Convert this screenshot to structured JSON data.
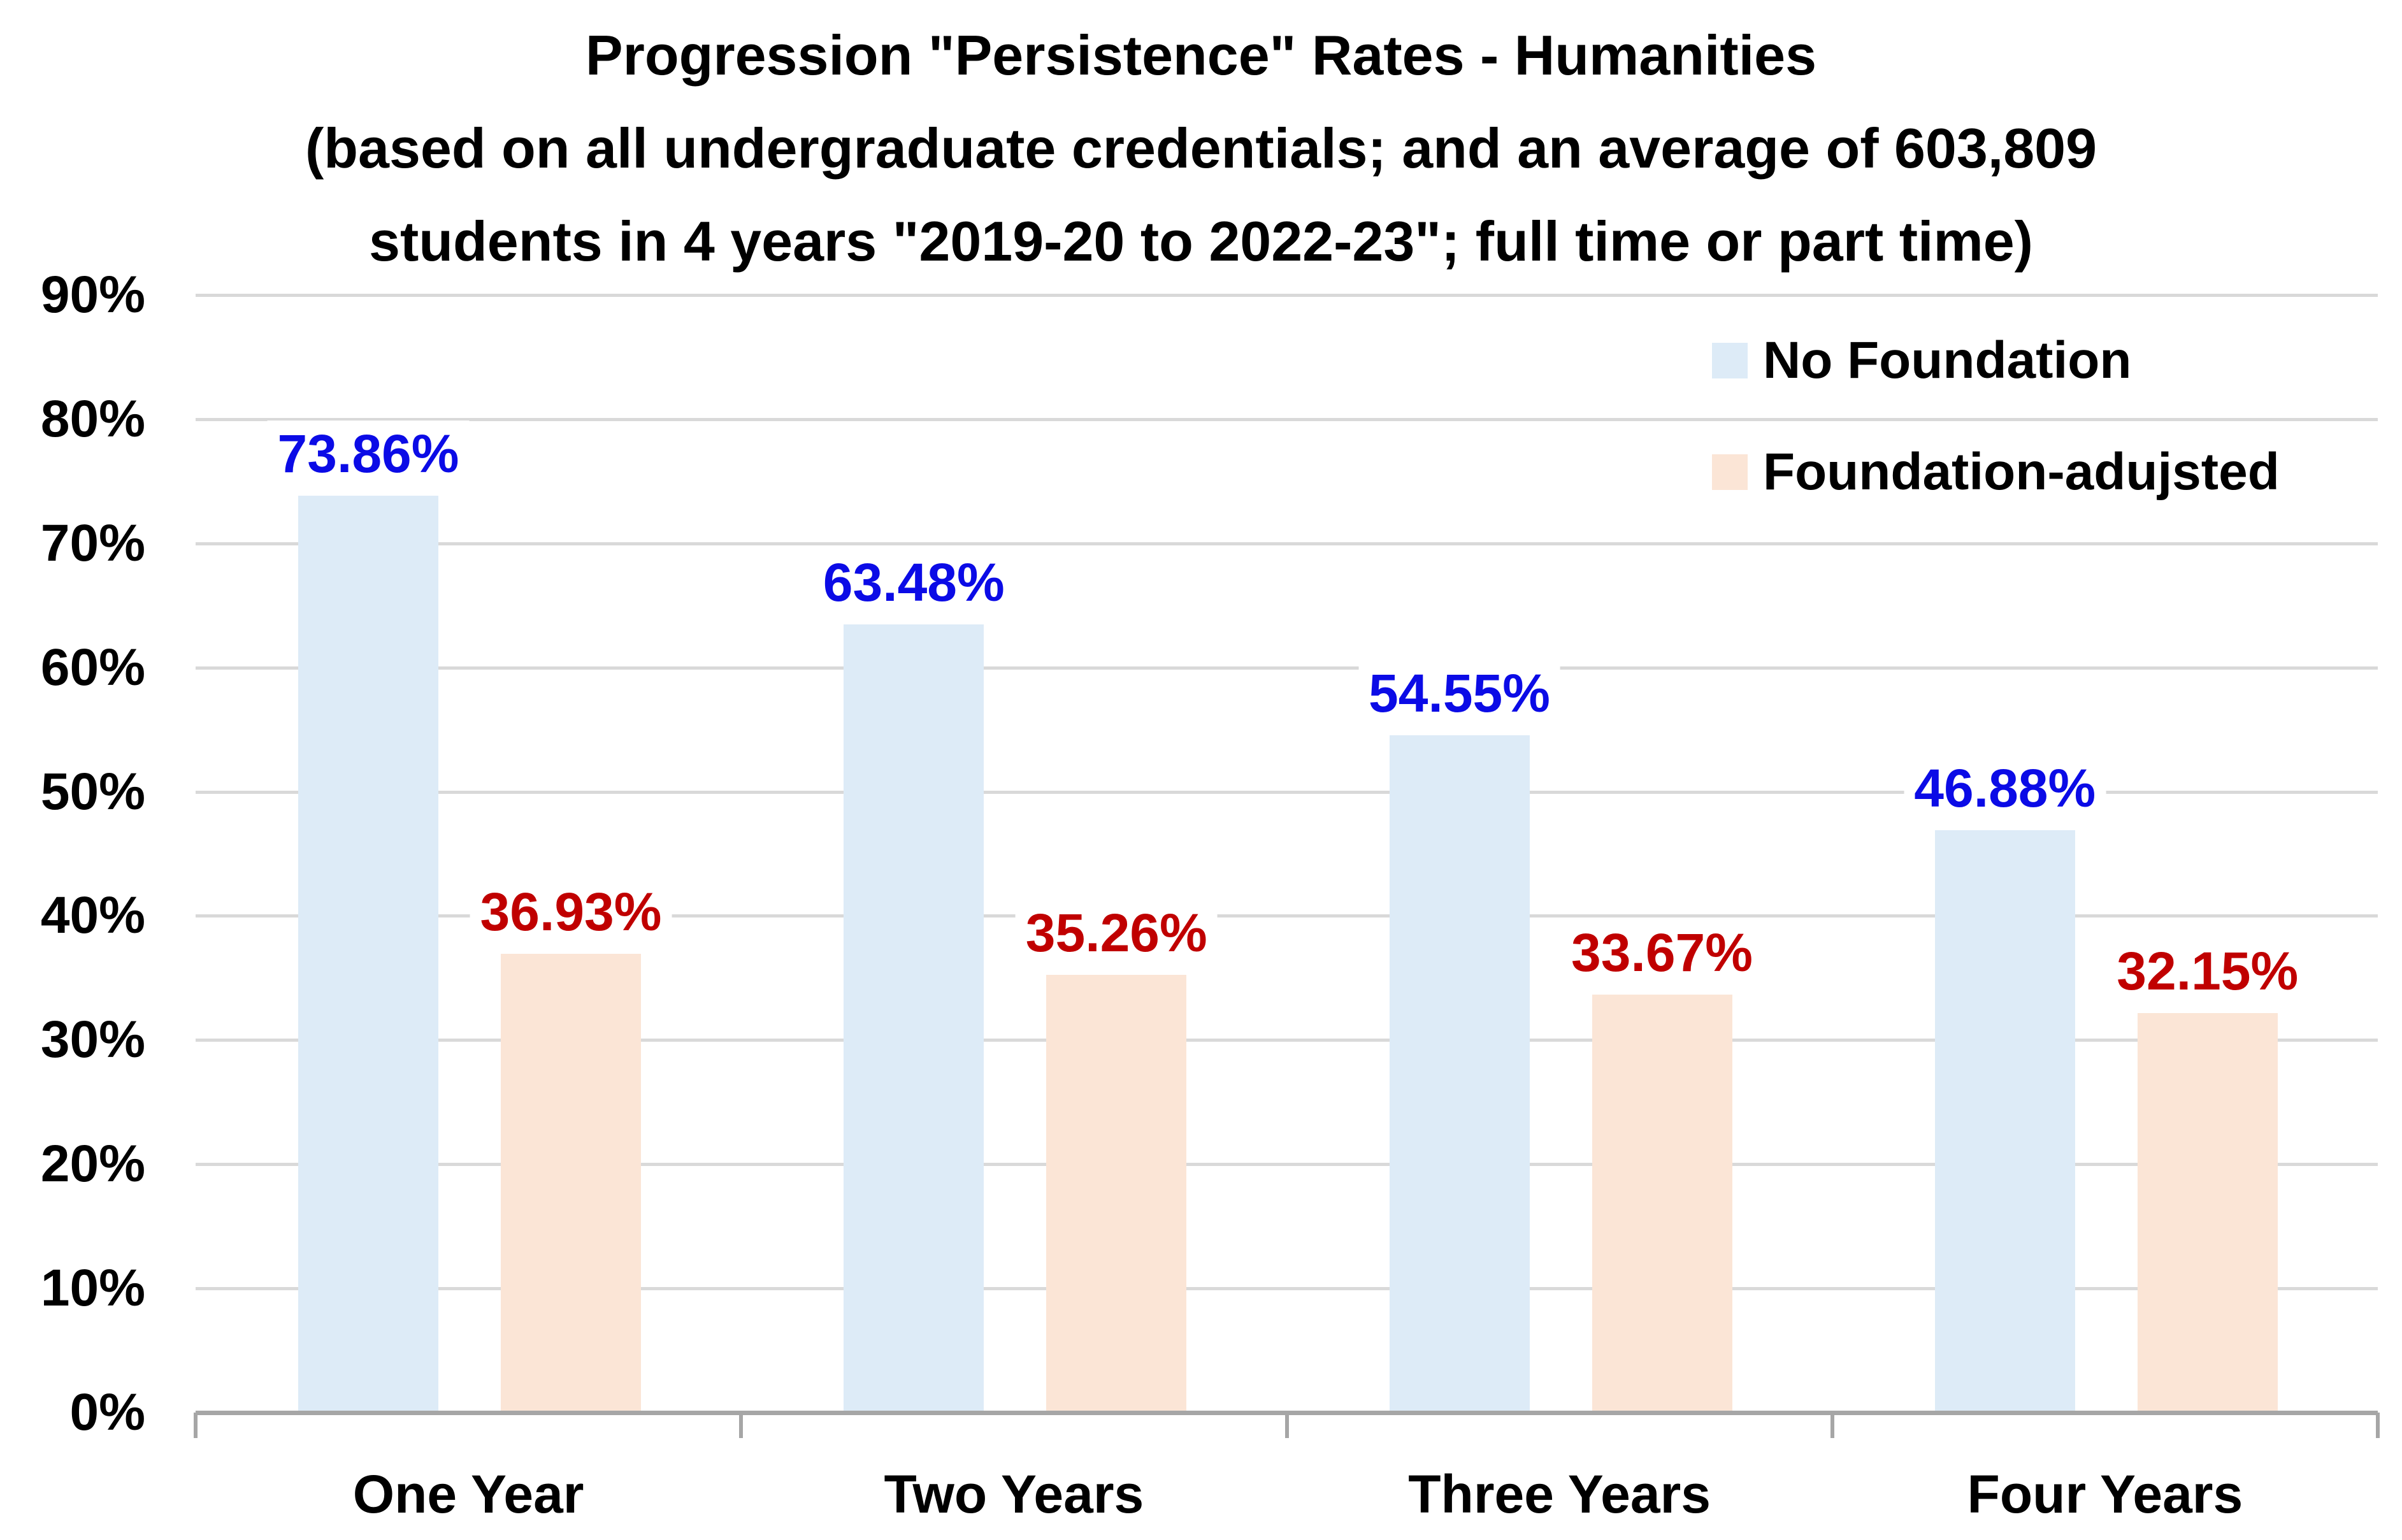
{
  "title": {
    "lines": [
      "Progression \"Persistence\" Rates - Humanities",
      "(based on all undergraduate credentials; and an average of 603,809",
      "students in 4 years \"2019-20 to 2022-23\"; full time or part time)"
    ]
  },
  "colors": {
    "background": "#FFFFFF",
    "gridline": "#D9D9D9",
    "axis_line": "#A6A6A6",
    "title_text": "#000000",
    "axis_text": "#000000"
  },
  "chart_data": {
    "type": "bar",
    "categories": [
      "One Year",
      "Two Years",
      "Three Years",
      "Four Years"
    ],
    "series": [
      {
        "name": "No Foundation",
        "color": "#DDEBF7",
        "label_color": "#0B0BE6",
        "values": [
          73.86,
          63.48,
          54.55,
          46.88
        ],
        "labels": [
          "73.86%",
          "63.48%",
          "54.55%",
          "46.88%"
        ]
      },
      {
        "name": "Foundation-adujsted",
        "color": "#FBE5D6",
        "label_color": "#C00000",
        "values": [
          36.93,
          35.26,
          33.67,
          32.15
        ],
        "labels": [
          "36.93%",
          "35.26%",
          "33.67%",
          "32.15%"
        ]
      }
    ],
    "ylim": [
      0,
      90
    ],
    "yticks": [
      "0%",
      "10%",
      "20%",
      "30%",
      "40%",
      "50%",
      "60%",
      "70%",
      "80%",
      "90%"
    ],
    "grid": true,
    "legend_position": "top-right"
  }
}
